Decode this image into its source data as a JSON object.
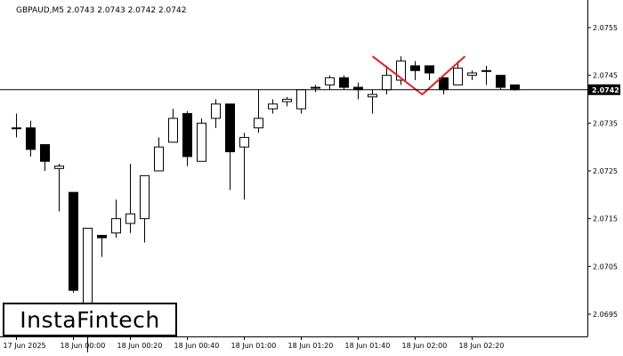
{
  "chart_data": {
    "type": "candlestick",
    "title": "GBPAUD,M5  2.0743 2.0743 2.0742 2.0742",
    "ylim": [
      2.0685,
      2.0761
    ],
    "y_ticks": [
      "2.0755",
      "2.0745",
      "2.0735",
      "2.0725",
      "2.0715",
      "2.0705",
      "2.0695"
    ],
    "x_ticks": [
      {
        "index": 0,
        "label": "17 Jun 2025"
      },
      {
        "index": 4,
        "label": "18 Jun 00:00"
      },
      {
        "index": 8,
        "label": "18 Jun 00:20"
      },
      {
        "index": 12,
        "label": "18 Jun 00:40"
      },
      {
        "index": 16,
        "label": "18 Jun 01:00"
      },
      {
        "index": 20,
        "label": "18 Jun 01:20"
      },
      {
        "index": 24,
        "label": "18 Jun 01:40"
      },
      {
        "index": 28,
        "label": "18 Jun 02:00"
      },
      {
        "index": 32,
        "label": "18 Jun 02:20"
      }
    ],
    "candles": [
      {
        "o": 2.0734,
        "h": 2.0737,
        "l": 2.0732,
        "c": 2.0734
      },
      {
        "o": 2.0734,
        "h": 2.07355,
        "l": 2.0728,
        "c": 2.07295
      },
      {
        "o": 2.07305,
        "h": 2.07305,
        "l": 2.0725,
        "c": 2.0727
      },
      {
        "o": 2.07255,
        "h": 2.07265,
        "l": 2.07165,
        "c": 2.0726
      },
      {
        "o": 2.07205,
        "h": 2.07205,
        "l": 2.06995,
        "c": 2.07
      },
      {
        "o": 2.0696,
        "h": 2.0713,
        "l": 2.0687,
        "c": 2.0713
      },
      {
        "o": 2.07115,
        "h": 2.07115,
        "l": 2.0707,
        "c": 2.0711
      },
      {
        "o": 2.0712,
        "h": 2.0719,
        "l": 2.0711,
        "c": 2.0715
      },
      {
        "o": 2.0714,
        "h": 2.07265,
        "l": 2.0712,
        "c": 2.0716
      },
      {
        "o": 2.0715,
        "h": 2.0724,
        "l": 2.071,
        "c": 2.0724
      },
      {
        "o": 2.0725,
        "h": 2.0732,
        "l": 2.0725,
        "c": 2.073
      },
      {
        "o": 2.0731,
        "h": 2.0738,
        "l": 2.0731,
        "c": 2.0736
      },
      {
        "o": 2.0737,
        "h": 2.07375,
        "l": 2.0726,
        "c": 2.0728
      },
      {
        "o": 2.0727,
        "h": 2.0736,
        "l": 2.0727,
        "c": 2.0735
      },
      {
        "o": 2.0736,
        "h": 2.074,
        "l": 2.0734,
        "c": 2.0739
      },
      {
        "o": 2.0739,
        "h": 2.0739,
        "l": 2.0721,
        "c": 2.0729
      },
      {
        "o": 2.073,
        "h": 2.0733,
        "l": 2.0719,
        "c": 2.0732
      },
      {
        "o": 2.0734,
        "h": 2.0742,
        "l": 2.0733,
        "c": 2.0736
      },
      {
        "o": 2.0738,
        "h": 2.074,
        "l": 2.0737,
        "c": 2.0739
      },
      {
        "o": 2.07395,
        "h": 2.07405,
        "l": 2.07385,
        "c": 2.074
      },
      {
        "o": 2.0738,
        "h": 2.0742,
        "l": 2.0737,
        "c": 2.0742
      },
      {
        "o": 2.07425,
        "h": 2.0743,
        "l": 2.07415,
        "c": 2.07425
      },
      {
        "o": 2.0743,
        "h": 2.0745,
        "l": 2.0742,
        "c": 2.07445
      },
      {
        "o": 2.07445,
        "h": 2.0745,
        "l": 2.0742,
        "c": 2.07425
      },
      {
        "o": 2.07425,
        "h": 2.07435,
        "l": 2.074,
        "c": 2.0742
      },
      {
        "o": 2.07405,
        "h": 2.0742,
        "l": 2.0737,
        "c": 2.0741
      },
      {
        "o": 2.0742,
        "h": 2.0747,
        "l": 2.0741,
        "c": 2.0745
      },
      {
        "o": 2.0744,
        "h": 2.0749,
        "l": 2.0743,
        "c": 2.0748
      },
      {
        "o": 2.0747,
        "h": 2.0748,
        "l": 2.0744,
        "c": 2.0746
      },
      {
        "o": 2.0747,
        "h": 2.0747,
        "l": 2.0744,
        "c": 2.07455
      },
      {
        "o": 2.07445,
        "h": 2.07445,
        "l": 2.0741,
        "c": 2.0742
      },
      {
        "o": 2.0743,
        "h": 2.0748,
        "l": 2.0743,
        "c": 2.07465
      },
      {
        "o": 2.0745,
        "h": 2.0746,
        "l": 2.0744,
        "c": 2.07455
      },
      {
        "o": 2.0746,
        "h": 2.0747,
        "l": 2.0743,
        "c": 2.0746
      },
      {
        "o": 2.0745,
        "h": 2.0745,
        "l": 2.0742,
        "c": 2.07425
      },
      {
        "o": 2.0743,
        "h": 2.0743,
        "l": 2.07418,
        "c": 2.0742
      }
    ],
    "current_price": {
      "value": 2.0742,
      "label": "2.0742"
    },
    "pattern": {
      "name": "Double Top",
      "color": "#e02020",
      "points": [
        {
          "index": 25,
          "price": 2.0749
        },
        {
          "index": 28.5,
          "price": 2.0741
        },
        {
          "index": 31.5,
          "price": 2.0749
        }
      ]
    },
    "colors": {
      "bull_fill": "#ffffff",
      "bear_fill": "#000000",
      "outline": "#000000",
      "price_badge": "#000000"
    }
  },
  "logo": {
    "text": "InstaFintech"
  }
}
